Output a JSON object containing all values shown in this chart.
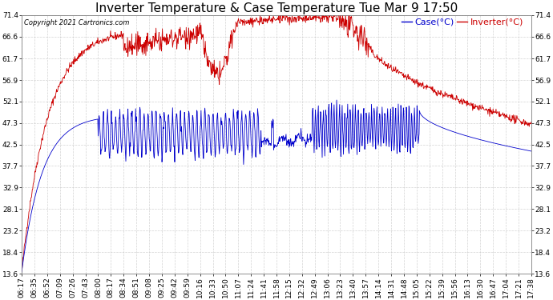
{
  "title": "Inverter Temperature & Case Temperature Tue Mar 9 17:50",
  "copyright": "Copyright 2021 Cartronics.com",
  "legend_case": "Case(°C)",
  "legend_inverter": "Inverter(°C)",
  "case_color": "#0000cc",
  "inverter_color": "#cc0000",
  "background_color": "#ffffff",
  "grid_color": "#c8c8c8",
  "yticks": [
    13.6,
    18.4,
    23.2,
    28.1,
    32.9,
    37.7,
    42.5,
    47.3,
    52.1,
    56.9,
    61.7,
    66.6,
    71.4
  ],
  "xtick_labels": [
    "06:17",
    "06:35",
    "06:52",
    "07:09",
    "07:26",
    "07:43",
    "08:00",
    "08:17",
    "08:34",
    "08:51",
    "09:08",
    "09:25",
    "09:42",
    "09:59",
    "10:16",
    "10:33",
    "10:50",
    "11:07",
    "11:24",
    "11:41",
    "11:58",
    "12:15",
    "12:32",
    "12:49",
    "13:06",
    "13:23",
    "13:40",
    "13:57",
    "14:14",
    "14:31",
    "14:48",
    "15:05",
    "15:22",
    "15:39",
    "15:56",
    "16:13",
    "16:30",
    "16:47",
    "17:04",
    "17:21",
    "17:38"
  ],
  "ylim": [
    13.6,
    71.4
  ],
  "title_fontsize": 11,
  "axis_fontsize": 6.5,
  "legend_fontsize": 8
}
